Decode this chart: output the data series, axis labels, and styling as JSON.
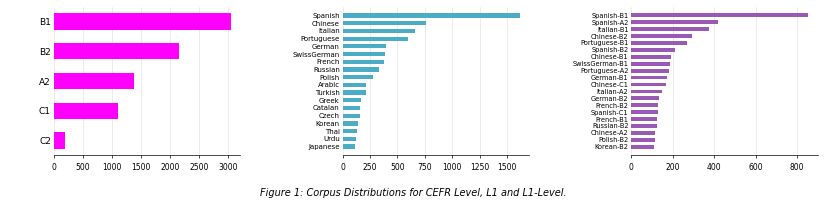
{
  "chart1": {
    "categories": [
      "B1",
      "B2",
      "A2",
      "C1",
      "C2"
    ],
    "values": [
      3050,
      2150,
      1380,
      1100,
      200
    ],
    "color": "#FF00FF",
    "xlim": [
      0,
      3200
    ],
    "xticks": [
      0,
      500,
      1000,
      1500,
      2000,
      2500,
      3000
    ]
  },
  "chart2": {
    "categories": [
      "Spanish",
      "Chinese",
      "Italian",
      "Portuguese",
      "German",
      "SwissGerman",
      "French",
      "Russian",
      "Polish",
      "Arabic",
      "Turkish",
      "Greek",
      "Catalan",
      "Czech",
      "Korean",
      "Thai",
      "Urdu",
      "Japanese"
    ],
    "values": [
      1620,
      760,
      660,
      600,
      400,
      390,
      375,
      330,
      275,
      215,
      210,
      170,
      162,
      158,
      140,
      128,
      122,
      118
    ],
    "color": "#4BACC6",
    "xlim": [
      0,
      1700
    ],
    "xticks": [
      0,
      250,
      500,
      750,
      1000,
      1250,
      1500
    ]
  },
  "chart3": {
    "categories": [
      "Spanish-B1",
      "Spanish-A2",
      "Italian-B1",
      "Chinese-B2",
      "Portuguese-B1",
      "Spanish-B2",
      "Chinese-B1",
      "SwissGerman-B1",
      "Portuguese-A2",
      "German-B1",
      "Chinese-C1",
      "Italian-A2",
      "German-B2",
      "French-B2",
      "Spanish-C1",
      "French-B1",
      "Russian-B2",
      "Chinese-A2",
      "Polish-B2",
      "Korean-B2"
    ],
    "values": [
      855,
      420,
      375,
      295,
      270,
      210,
      190,
      185,
      182,
      170,
      165,
      148,
      135,
      130,
      128,
      125,
      122,
      115,
      112,
      108
    ],
    "color": "#9B59B6",
    "xlim": [
      0,
      900
    ],
    "xticks": [
      0,
      200,
      400,
      600,
      800
    ]
  },
  "figure_title": "Figure 1: Corpus Distributions for CEFR Level, L1 and L1-Level.",
  "bg_color": "#FFFFFF"
}
